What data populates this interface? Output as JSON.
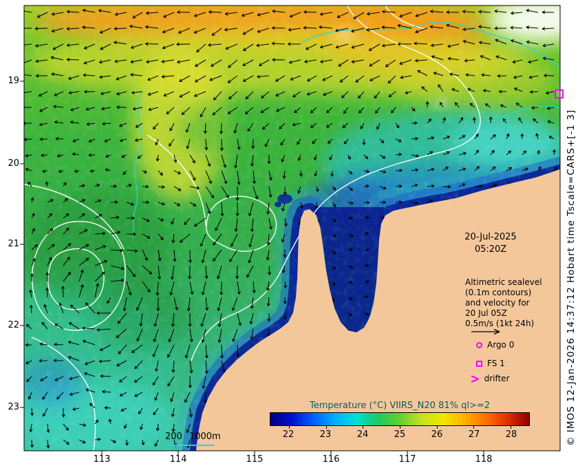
{
  "map": {
    "x_tick_labels": [
      "113",
      "114",
      "115",
      "116",
      "117",
      "118"
    ],
    "y_tick_labels": [
      "19",
      "20",
      "21",
      "22",
      "23"
    ]
  },
  "annotations": {
    "datetime_line1": "20-Jul-2025",
    "datetime_line2": "05:20Z",
    "legend_lines": [
      "Altimetric sealevel",
      "(0.1m contours)",
      "and velocity for",
      "20 Jul 05Z",
      "0.5m/s (1kt 24h)"
    ],
    "argo_label": "Argo 0",
    "fs_label": "FS 1",
    "drifter_label": "drifter",
    "scalebar_label": "200 1000m",
    "copyright": "© IMOS 12-Jan-2026 14:37:12 Hobart time Tscale=CARS+[-1 3]"
  },
  "colorbar": {
    "title": "Temperature (°C) VIIRS_N20 81% ql>=2",
    "tick_labels": [
      "22",
      "23",
      "24",
      "25",
      "26",
      "27",
      "28"
    ],
    "gradient_colors": [
      "#000080",
      "#0010d0",
      "#0060ff",
      "#00b0ff",
      "#00e0d0",
      "#20c860",
      "#60d030",
      "#c8e020",
      "#f0e800",
      "#ffb000",
      "#ff7000",
      "#e03000",
      "#8b0000"
    ]
  },
  "colors": {
    "land": "#f4c79b",
    "marker_magenta": "#ff00ff",
    "sealevel_contour": "#ffffff",
    "bathymetry_contour": "#22d8d8",
    "vector_arrows": "#000000",
    "colorbar_title": "#005f5f"
  }
}
